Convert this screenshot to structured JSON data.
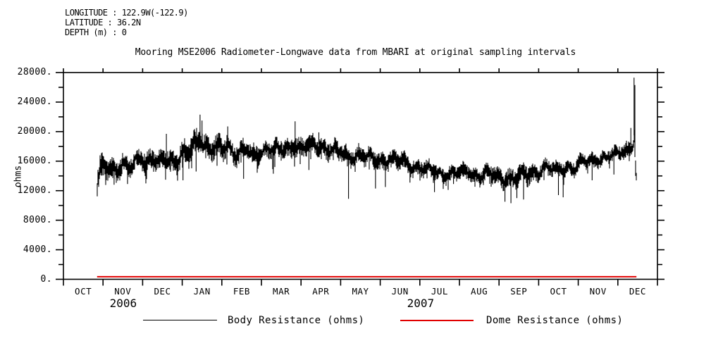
{
  "header": {
    "line1": "LONGITUDE : 122.9W(-122.9)",
    "line2": "LATITUDE : 36.2N",
    "line3": "DEPTH (m) : 0"
  },
  "chart_data": {
    "type": "line",
    "title": "Mooring MSE2006 Radiometer-Longwave data from MBARI at original sampling intervals",
    "ylabel": "ohms",
    "ylim": [
      0,
      28000
    ],
    "y_major_step": 4000,
    "y_minor_step": 2000,
    "y_tick_suffix": ".",
    "grid": false,
    "x_months": [
      "OCT",
      "NOV",
      "DEC",
      "JAN",
      "FEB",
      "MAR",
      "APR",
      "MAY",
      "JUN",
      "JUL",
      "AUG",
      "SEP",
      "OCT",
      "NOV",
      "DEC"
    ],
    "x_years": [
      {
        "label": "2006",
        "t": 1.51
      },
      {
        "label": "2007",
        "t": 9.02
      }
    ],
    "legend_position": "bottom",
    "series": [
      {
        "name": "Body Resistance (ohms)",
        "color": "#000000",
        "units": "ohms",
        "t_start": 0.85,
        "t_end": 14.47,
        "baseline": [
          [
            0.85,
            12600
          ],
          [
            0.92,
            14800
          ],
          [
            1.05,
            16000
          ],
          [
            1.2,
            15100
          ],
          [
            1.35,
            14500
          ],
          [
            1.5,
            15400
          ],
          [
            1.65,
            15000
          ],
          [
            1.8,
            16300
          ],
          [
            1.95,
            16800
          ],
          [
            2.1,
            15600
          ],
          [
            2.25,
            16200
          ],
          [
            2.4,
            15700
          ],
          [
            2.55,
            16900
          ],
          [
            2.7,
            16300
          ],
          [
            2.85,
            15900
          ],
          [
            3.0,
            16500
          ],
          [
            3.15,
            17400
          ],
          [
            3.3,
            18300
          ],
          [
            3.45,
            19800
          ],
          [
            3.55,
            18000
          ],
          [
            3.7,
            17300
          ],
          [
            3.85,
            17600
          ],
          [
            4.0,
            17900
          ],
          [
            4.15,
            18600
          ],
          [
            4.3,
            17200
          ],
          [
            4.45,
            17000
          ],
          [
            4.6,
            17600
          ],
          [
            4.75,
            16800
          ],
          [
            4.9,
            17200
          ],
          [
            5.05,
            17500
          ],
          [
            5.2,
            17900
          ],
          [
            5.35,
            17300
          ],
          [
            5.5,
            17600
          ],
          [
            5.7,
            17900
          ],
          [
            5.85,
            18400
          ],
          [
            6.0,
            17700
          ],
          [
            6.15,
            17900
          ],
          [
            6.3,
            18100
          ],
          [
            6.45,
            18300
          ],
          [
            6.6,
            17800
          ],
          [
            6.75,
            17500
          ],
          [
            6.9,
            17300
          ],
          [
            7.05,
            17100
          ],
          [
            7.2,
            16700
          ],
          [
            7.35,
            16900
          ],
          [
            7.5,
            17000
          ],
          [
            7.65,
            16500
          ],
          [
            7.8,
            16300
          ],
          [
            7.95,
            16100
          ],
          [
            8.1,
            16200
          ],
          [
            8.25,
            16400
          ],
          [
            8.4,
            15900
          ],
          [
            8.55,
            16100
          ],
          [
            8.7,
            15600
          ],
          [
            8.85,
            15300
          ],
          [
            9.0,
            15200
          ],
          [
            9.15,
            14900
          ],
          [
            9.3,
            14700
          ],
          [
            9.45,
            14500
          ],
          [
            9.6,
            14200
          ],
          [
            9.75,
            14400
          ],
          [
            9.9,
            14300
          ],
          [
            10.05,
            14400
          ],
          [
            10.2,
            14600
          ],
          [
            10.35,
            14300
          ],
          [
            10.5,
            14100
          ],
          [
            10.65,
            14400
          ],
          [
            10.8,
            14200
          ],
          [
            10.95,
            14000
          ],
          [
            11.1,
            13700
          ],
          [
            11.25,
            13900
          ],
          [
            11.4,
            13600
          ],
          [
            11.55,
            13800
          ],
          [
            11.7,
            14100
          ],
          [
            11.85,
            14400
          ],
          [
            12.0,
            14700
          ],
          [
            12.15,
            15200
          ],
          [
            12.3,
            14900
          ],
          [
            12.45,
            14700
          ],
          [
            12.6,
            15000
          ],
          [
            12.75,
            15300
          ],
          [
            12.9,
            15200
          ],
          [
            13.05,
            15700
          ],
          [
            13.2,
            15900
          ],
          [
            13.35,
            16100
          ],
          [
            13.5,
            16300
          ],
          [
            13.65,
            16500
          ],
          [
            13.8,
            16700
          ],
          [
            13.95,
            16900
          ],
          [
            14.1,
            17300
          ],
          [
            14.25,
            17700
          ],
          [
            14.38,
            18600
          ],
          [
            14.42,
            19800
          ],
          [
            14.45,
            15200
          ],
          [
            14.47,
            13400
          ]
        ],
        "noise": [
          [
            0.85,
            1600
          ],
          [
            1.5,
            1300
          ],
          [
            2.5,
            1300
          ],
          [
            3.45,
            1700
          ],
          [
            4.2,
            1500
          ],
          [
            5.0,
            1300
          ],
          [
            6.0,
            1300
          ],
          [
            7.0,
            1200
          ],
          [
            8.0,
            1200
          ],
          [
            9.0,
            1100
          ],
          [
            10.0,
            1000
          ],
          [
            11.0,
            1200
          ],
          [
            11.5,
            1400
          ],
          [
            12.0,
            1100
          ],
          [
            13.0,
            1000
          ],
          [
            14.0,
            900
          ],
          [
            14.3,
            1100
          ],
          [
            14.47,
            1300
          ]
        ],
        "spikes": [
          [
            1.28,
            12800
          ],
          [
            1.62,
            12900
          ],
          [
            2.6,
            19700
          ],
          [
            3.02,
            13400
          ],
          [
            3.35,
            14600
          ],
          [
            3.45,
            22300
          ],
          [
            3.5,
            21500
          ],
          [
            4.15,
            20700
          ],
          [
            4.55,
            13600
          ],
          [
            5.3,
            14300
          ],
          [
            5.85,
            21400
          ],
          [
            6.2,
            14800
          ],
          [
            6.45,
            19900
          ],
          [
            7.2,
            10900
          ],
          [
            7.88,
            12300
          ],
          [
            8.13,
            12500
          ],
          [
            8.75,
            13100
          ],
          [
            9.37,
            11800
          ],
          [
            9.85,
            12900
          ],
          [
            10.6,
            13000
          ],
          [
            11.15,
            10500
          ],
          [
            11.3,
            10300
          ],
          [
            11.45,
            11000
          ],
          [
            11.62,
            10800
          ],
          [
            12.5,
            11400
          ],
          [
            12.62,
            11100
          ],
          [
            13.35,
            13400
          ],
          [
            13.9,
            14200
          ],
          [
            14.33,
            20500
          ],
          [
            14.41,
            27300
          ],
          [
            14.43,
            26300
          ]
        ]
      },
      {
        "name": "Dome Resistance (ohms)",
        "color": "#e10000",
        "units": "ohms",
        "t_start": 0.85,
        "t_end": 14.47,
        "constant_value": 350
      }
    ]
  }
}
